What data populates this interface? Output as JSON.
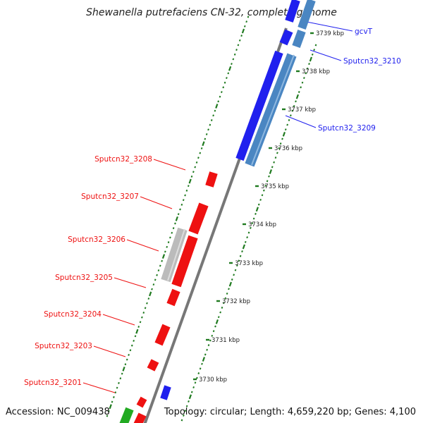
{
  "title": "Shewanella putrefaciens CN-32, complete genome",
  "footer": {
    "accession": "Accession: NC_009438",
    "topology": "Topology: circular; Length: 4,659,220 bp; Genes: 4,100"
  },
  "colors": {
    "forward_gene": "#2020ee",
    "reverse_gene": "#ee1111",
    "other_forward": "#4a86c2",
    "other_reverse": "#bbbbbb",
    "rna_gene": "#22aa22",
    "backbone": "#777777",
    "tick": "#1f7a1f"
  },
  "scale_ticks": [
    {
      "label": "3739 kbp"
    },
    {
      "label": "3738 kbp"
    },
    {
      "label": "3737 kbp"
    },
    {
      "label": "3736 kbp"
    },
    {
      "label": "3735 kbp"
    },
    {
      "label": "3734 kbp"
    },
    {
      "label": "3733 kbp"
    },
    {
      "label": "3732 kbp"
    },
    {
      "label": "3731 kbp"
    },
    {
      "label": "3730 kbp"
    }
  ],
  "gene_labels_forward": [
    {
      "name": "gcvT"
    },
    {
      "name": "Sputcn32_3210"
    },
    {
      "name": "Sputcn32_3209"
    }
  ],
  "gene_labels_reverse": [
    {
      "name": "Sputcn32_3208"
    },
    {
      "name": "Sputcn32_3207"
    },
    {
      "name": "Sputcn32_3206"
    },
    {
      "name": "Sputcn32_3205"
    },
    {
      "name": "Sputcn32_3204"
    },
    {
      "name": "Sputcn32_3203"
    },
    {
      "name": "Sputcn32_3201"
    }
  ]
}
